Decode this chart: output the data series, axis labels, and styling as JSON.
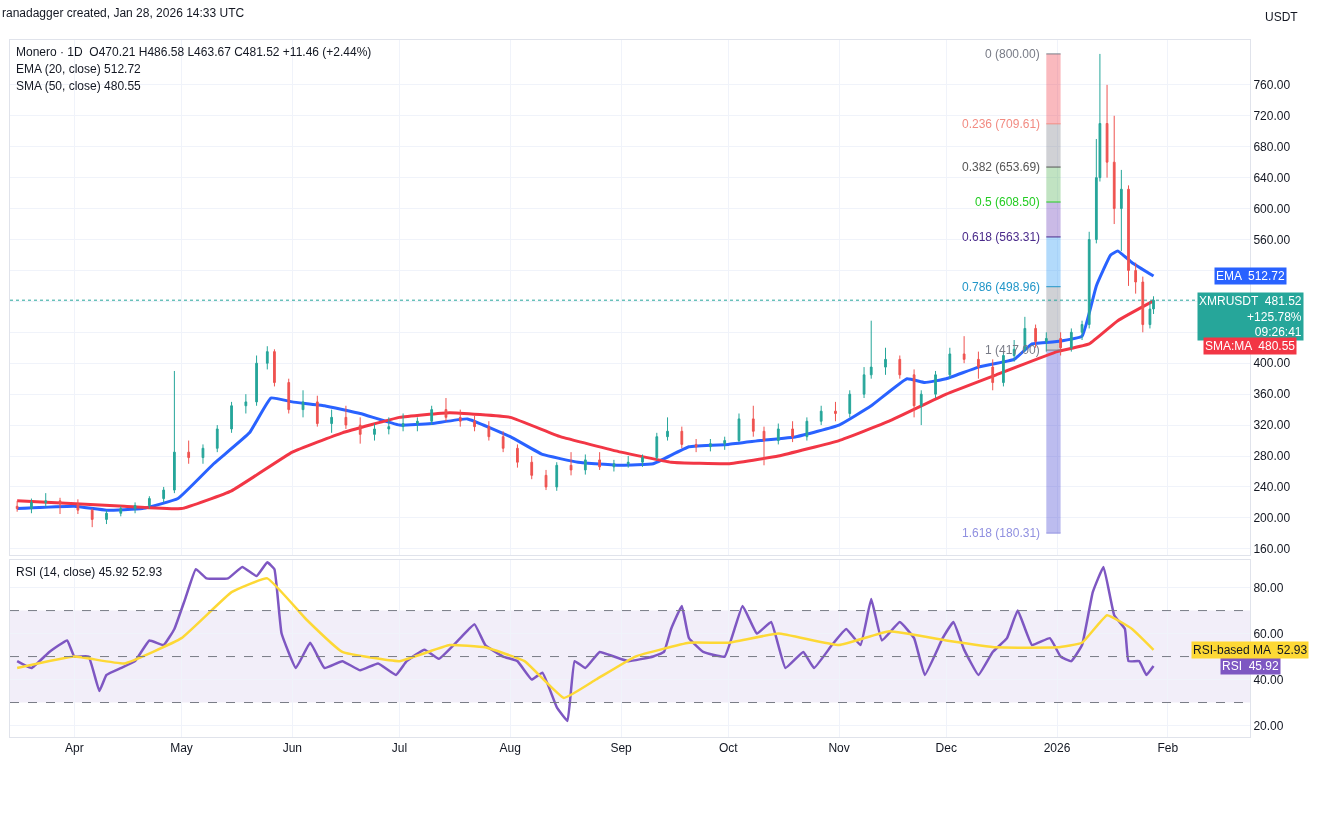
{
  "chart_data": [
    {
      "type": "candlestick",
      "title": "Monero · 1D  O470.21 H486.58 L463.67 C481.52 +11.46 (+2.44%)",
      "subtitle": "ranadagger created, Jan 28, 2026 14:33 UTC",
      "ylabel": "USDT",
      "x": [
        "2025-03-16",
        "2025-03-20",
        "2025-03-24",
        "2025-03-28",
        "2025-04-02",
        "2025-04-06",
        "2025-04-10",
        "2025-04-14",
        "2025-04-18",
        "2025-04-22",
        "2025-04-26",
        "2025-04-29",
        "2025-05-03",
        "2025-05-07",
        "2025-05-11",
        "2025-05-15",
        "2025-05-19",
        "2025-05-22",
        "2025-05-25",
        "2025-05-27",
        "2025-05-31",
        "2025-06-04",
        "2025-06-08",
        "2025-06-12",
        "2025-06-16",
        "2025-06-20",
        "2025-06-24",
        "2025-06-28",
        "2025-07-02",
        "2025-07-06",
        "2025-07-10",
        "2025-07-14",
        "2025-07-18",
        "2025-07-22",
        "2025-07-26",
        "2025-07-30",
        "2025-08-03",
        "2025-08-07",
        "2025-08-11",
        "2025-08-14",
        "2025-08-18",
        "2025-08-22",
        "2025-08-26",
        "2025-08-30",
        "2025-09-03",
        "2025-09-07",
        "2025-09-11",
        "2025-09-14",
        "2025-09-18",
        "2025-09-22",
        "2025-09-26",
        "2025-09-30",
        "2025-10-04",
        "2025-10-08",
        "2025-10-11",
        "2025-10-15",
        "2025-10-19",
        "2025-10-23",
        "2025-10-27",
        "2025-10-31",
        "2025-11-04",
        "2025-11-08",
        "2025-11-10",
        "2025-11-14",
        "2025-11-18",
        "2025-11-22",
        "2025-11-24",
        "2025-11-28",
        "2025-12-02",
        "2025-12-06",
        "2025-12-10",
        "2025-12-14",
        "2025-12-17",
        "2025-12-20",
        "2025-12-23",
        "2025-12-26",
        "2025-12-29",
        "2026-01-02",
        "2026-01-05",
        "2026-01-08",
        "2026-01-10",
        "2026-01-12",
        "2026-01-13",
        "2026-01-15",
        "2026-01-17",
        "2026-01-19",
        "2026-01-21",
        "2026-01-23",
        "2026-01-25",
        "2026-01-27",
        "2026-01-28"
      ],
      "ohlc": [
        [
          215,
          222,
          208,
          212
        ],
        [
          212,
          225,
          206,
          220
        ],
        [
          220,
          232,
          214,
          222
        ],
        [
          222,
          226,
          205,
          218
        ],
        [
          218,
          224,
          205,
          210
        ],
        [
          210,
          212,
          188,
          198
        ],
        [
          198,
          210,
          192,
          206
        ],
        [
          206,
          215,
          202,
          212
        ],
        [
          212,
          220,
          206,
          216
        ],
        [
          216,
          228,
          212,
          225
        ],
        [
          225,
          240,
          220,
          236
        ],
        [
          236,
          390,
          232,
          285
        ],
        [
          285,
          300,
          270,
          278
        ],
        [
          278,
          295,
          270,
          290
        ],
        [
          290,
          320,
          285,
          315
        ],
        [
          315,
          350,
          310,
          345
        ],
        [
          345,
          360,
          335,
          350
        ],
        [
          350,
          410,
          345,
          400
        ],
        [
          400,
          422,
          392,
          415
        ],
        [
          415,
          418,
          370,
          375
        ],
        [
          375,
          380,
          335,
          340
        ],
        [
          340,
          365,
          330,
          350
        ],
        [
          350,
          358,
          318,
          322
        ],
        [
          322,
          340,
          310,
          330
        ],
        [
          330,
          345,
          315,
          320
        ],
        [
          320,
          330,
          296,
          308
        ],
        [
          308,
          322,
          300,
          315
        ],
        [
          315,
          330,
          308,
          318
        ],
        [
          318,
          335,
          312,
          322
        ],
        [
          322,
          330,
          312,
          325
        ],
        [
          325,
          345,
          320,
          340
        ],
        [
          340,
          355,
          325,
          330
        ],
        [
          330,
          340,
          318,
          325
        ],
        [
          325,
          332,
          312,
          318
        ],
        [
          318,
          325,
          300,
          305
        ],
        [
          305,
          312,
          285,
          290
        ],
        [
          290,
          295,
          265,
          272
        ],
        [
          272,
          280,
          250,
          255
        ],
        [
          255,
          262,
          236,
          240
        ],
        [
          240,
          272,
          235,
          268
        ],
        [
          268,
          285,
          255,
          262
        ],
        [
          262,
          282,
          256,
          275
        ],
        [
          275,
          285,
          262,
          266
        ],
        [
          266,
          275,
          260,
          270
        ],
        [
          270,
          280,
          265,
          272
        ],
        [
          272,
          282,
          266,
          278
        ],
        [
          278,
          310,
          275,
          305
        ],
        [
          305,
          330,
          300,
          312
        ],
        [
          312,
          318,
          290,
          295
        ],
        [
          295,
          302,
          285,
          292
        ],
        [
          292,
          302,
          286,
          296
        ],
        [
          296,
          305,
          288,
          300
        ],
        [
          300,
          335,
          298,
          328
        ],
        [
          328,
          345,
          305,
          312
        ],
        [
          312,
          318,
          268,
          300
        ],
        [
          300,
          322,
          295,
          315
        ],
        [
          315,
          325,
          298,
          305
        ],
        [
          305,
          330,
          300,
          325
        ],
        [
          325,
          345,
          320,
          338
        ],
        [
          338,
          350,
          325,
          335
        ],
        [
          335,
          365,
          330,
          360
        ],
        [
          360,
          395,
          355,
          385
        ],
        [
          385,
          455,
          380,
          395
        ],
        [
          395,
          420,
          385,
          405
        ],
        [
          405,
          410,
          380,
          385
        ],
        [
          385,
          392,
          330,
          345
        ],
        [
          345,
          365,
          320,
          360
        ],
        [
          360,
          390,
          355,
          385
        ],
        [
          385,
          420,
          380,
          412
        ],
        [
          412,
          435,
          400,
          405
        ],
        [
          405,
          415,
          380,
          395
        ],
        [
          395,
          405,
          365,
          375
        ],
        [
          375,
          415,
          370,
          410
        ],
        [
          410,
          430,
          402,
          418
        ],
        [
          418,
          460,
          415,
          445
        ],
        [
          445,
          450,
          420,
          428
        ],
        [
          428,
          440,
          415,
          432
        ],
        [
          432,
          440,
          410,
          420
        ],
        [
          420,
          445,
          415,
          440
        ],
        [
          440,
          455,
          430,
          450
        ],
        [
          450,
          570,
          445,
          560
        ],
        [
          560,
          690,
          555,
          640
        ],
        [
          640,
          800,
          635,
          710
        ],
        [
          710,
          760,
          640,
          660
        ],
        [
          660,
          720,
          580,
          600
        ],
        [
          600,
          650,
          545,
          625
        ],
        [
          625,
          630,
          500,
          520
        ],
        [
          520,
          530,
          490,
          505
        ],
        [
          505,
          512,
          440,
          450
        ],
        [
          450,
          480,
          445,
          470
        ],
        [
          470.21,
          486.58,
          463.67,
          481.52
        ]
      ],
      "series": [
        {
          "type": "bar",
          "x": [
            "2025-12-31"
          ],
          "base": [
            709.61
          ],
          "values": [
            90.39
          ],
          "color": "#f23645"
        },
        {
          "type": "bar",
          "x": [
            "2025-12-31"
          ],
          "base": [
            653.69
          ],
          "values": [
            55.92
          ],
          "color": "#787b86"
        },
        {
          "type": "bar",
          "x": [
            "2025-12-31"
          ],
          "base": [
            608.5
          ],
          "values": [
            45.19
          ],
          "color": "#4caf50"
        },
        {
          "type": "bar",
          "x": [
            "2025-12-31"
          ],
          "base": [
            563.31
          ],
          "values": [
            45.19
          ],
          "color": "#673ab7"
        },
        {
          "type": "bar",
          "x": [
            "2025-12-31"
          ],
          "base": [
            498.96
          ],
          "values": [
            64.35
          ],
          "color": "#2196f3"
        },
        {
          "type": "bar",
          "x": [
            "2025-12-31"
          ],
          "base": [
            417
          ],
          "values": [
            81.96
          ],
          "color": "#787b86"
        },
        {
          "type": "bar",
          "x": [
            "2025-12-31"
          ],
          "base": [
            180.31
          ],
          "values": [
            236.69
          ],
          "color": "#3f3fd0"
        },
        {
          "type": "line",
          "name": "EMA  512.72",
          "color": "#2962ff",
          "x": [
            "2025-03-16",
            "2025-04-01",
            "2025-04-10",
            "2025-04-20",
            "2025-04-30",
            "2025-05-10",
            "2025-05-20",
            "2025-05-26",
            "2025-06-01",
            "2025-06-10",
            "2025-06-20",
            "2025-07-01",
            "2025-07-10",
            "2025-07-20",
            "2025-08-01",
            "2025-08-10",
            "2025-08-20",
            "2025-09-01",
            "2025-09-10",
            "2025-09-20",
            "2025-10-01",
            "2025-10-10",
            "2025-10-20",
            "2025-11-01",
            "2025-11-10",
            "2025-11-20",
            "2025-11-25",
            "2025-12-01",
            "2025-12-10",
            "2025-12-20",
            "2025-12-25",
            "2026-01-01",
            "2026-01-08",
            "2026-01-12",
            "2026-01-16",
            "2026-01-18",
            "2026-01-22",
            "2026-01-28"
          ],
          "values": [
            212,
            215,
            210,
            212,
            225,
            270,
            310,
            355,
            350,
            345,
            335,
            320,
            322,
            328,
            305,
            282,
            272,
            268,
            270,
            292,
            295,
            300,
            305,
            320,
            345,
            380,
            375,
            380,
            395,
            405,
            425,
            428,
            435,
            500,
            540,
            545,
            530,
            512.72
          ]
        },
        {
          "type": "line",
          "name": "SMA:MA  480.55",
          "color": "#f23645",
          "x": [
            "2025-03-16",
            "2025-04-15",
            "2025-05-01",
            "2025-05-15",
            "2025-06-01",
            "2025-06-15",
            "2025-07-01",
            "2025-07-15",
            "2025-08-01",
            "2025-08-15",
            "2025-09-01",
            "2025-09-15",
            "2025-10-01",
            "2025-10-15",
            "2025-11-01",
            "2025-11-15",
            "2025-12-01",
            "2025-12-15",
            "2026-01-01",
            "2026-01-10",
            "2026-01-18",
            "2026-01-28"
          ],
          "values": [
            222,
            215,
            212,
            235,
            285,
            310,
            330,
            336,
            330,
            305,
            285,
            272,
            270,
            280,
            300,
            325,
            360,
            385,
            415,
            425,
            455,
            480.55
          ]
        }
      ],
      "xlim": [
        "2025-03-14",
        "2026-02-24"
      ],
      "ylim": [
        152,
        818
      ],
      "yticks": [
        {
          "value": 160,
          "label": "160.00"
        },
        {
          "value": 200,
          "label": "200.00"
        },
        {
          "value": 240,
          "label": "240.00"
        },
        {
          "value": 280,
          "label": "280.00"
        },
        {
          "value": 320,
          "label": "320.00"
        },
        {
          "value": 360,
          "label": "360.00"
        },
        {
          "value": 400,
          "label": "400.00"
        },
        {
          "value": 440,
          "label": null
        },
        {
          "value": 480,
          "label": null
        },
        {
          "value": 520,
          "label": null
        },
        {
          "value": 560,
          "label": "560.00"
        },
        {
          "value": 600,
          "label": "600.00"
        },
        {
          "value": 640,
          "label": "640.00"
        },
        {
          "value": 680,
          "label": "680.00"
        },
        {
          "value": 720,
          "label": "720.00"
        },
        {
          "value": 760,
          "label": "760.00"
        }
      ],
      "tick_labels": "y",
      "grid": true,
      "ref_lines": [
        {
          "axis": "y",
          "value": 800,
          "label": "0 (800.00)",
          "color": "#787b86"
        },
        {
          "axis": "y",
          "value": 709.61,
          "label": "0.236 (709.61)",
          "color": "#f28b82"
        },
        {
          "axis": "y",
          "value": 653.69,
          "label": "0.382 (653.69)",
          "color": "#555555"
        },
        {
          "axis": "y",
          "value": 608.5,
          "label": "0.5 (608.50)",
          "color": "#22cc22"
        },
        {
          "axis": "y",
          "value": 563.31,
          "label": "0.618 (563.31)",
          "color": "#4a2a8a"
        },
        {
          "axis": "y",
          "value": 498.96,
          "label": "0.786 (498.96)",
          "color": "#2196c8"
        },
        {
          "axis": "y",
          "value": 417,
          "label": "1 (417.00)",
          "color": "#787b86"
        },
        {
          "axis": "y",
          "value": 180.31,
          "label": "1.618 (180.31)",
          "color": "#9090e0"
        },
        {
          "axis": "y",
          "value": 481.52,
          "label": "XMRUSDT  481.52\n+125.78%\n09:26:41",
          "color": "#26a69a",
          "line_style": "dotted"
        }
      ],
      "annotations": [
        "EMA (20, close) 512.72",
        "SMA (50, close) 480.55"
      ]
    },
    {
      "type": "line",
      "annotations": [
        "RSI (14, close) 45.92 52.93"
      ],
      "series": [
        {
          "name": "RSI  45.92",
          "color": "#7e57c2",
          "x": [
            "2025-03-16",
            "2025-03-20",
            "2025-03-25",
            "2025-03-30",
            "2025-04-01",
            "2025-04-05",
            "2025-04-08",
            "2025-04-10",
            "2025-04-14",
            "2025-04-18",
            "2025-04-22",
            "2025-04-26",
            "2025-04-29",
            "2025-05-02",
            "2025-05-05",
            "2025-05-08",
            "2025-05-14",
            "2025-05-18",
            "2025-05-22",
            "2025-05-25",
            "2025-05-27",
            "2025-05-29",
            "2025-06-02",
            "2025-06-06",
            "2025-06-10",
            "2025-06-15",
            "2025-06-20",
            "2025-06-25",
            "2025-06-30",
            "2025-07-03",
            "2025-07-08",
            "2025-07-12",
            "2025-07-18",
            "2025-07-22",
            "2025-07-25",
            "2025-07-30",
            "2025-08-03",
            "2025-08-07",
            "2025-08-10",
            "2025-08-14",
            "2025-08-17",
            "2025-08-19",
            "2025-08-22",
            "2025-08-26",
            "2025-08-30",
            "2025-09-03",
            "2025-09-10",
            "2025-09-13",
            "2025-09-15",
            "2025-09-18",
            "2025-09-20",
            "2025-09-24",
            "2025-09-30",
            "2025-10-05",
            "2025-10-09",
            "2025-10-13",
            "2025-10-17",
            "2025-10-22",
            "2025-10-25",
            "2025-10-30",
            "2025-11-03",
            "2025-11-07",
            "2025-11-10",
            "2025-11-13",
            "2025-11-18",
            "2025-11-22",
            "2025-11-25",
            "2025-11-30",
            "2025-12-03",
            "2025-12-06",
            "2025-12-10",
            "2025-12-14",
            "2025-12-18",
            "2025-12-21",
            "2025-12-25",
            "2025-12-30",
            "2026-01-02",
            "2026-01-05",
            "2026-01-08",
            "2026-01-11",
            "2026-01-14",
            "2026-01-17",
            "2026-01-20",
            "2026-01-21",
            "2026-01-24",
            "2026-01-26",
            "2026-01-28"
          ],
          "values": [
            48,
            45,
            52,
            57,
            50,
            50,
            35,
            42,
            45,
            48,
            57,
            55,
            62,
            75,
            88,
            84,
            84,
            89,
            85,
            91,
            88,
            60,
            45,
            56,
            45,
            48,
            44,
            47,
            42,
            48,
            53,
            49,
            58,
            64,
            55,
            50,
            48,
            40,
            43,
            28,
            22,
            48,
            45,
            52,
            50,
            48,
            50,
            52,
            62,
            72,
            58,
            52,
            50,
            72,
            60,
            65,
            45,
            52,
            45,
            55,
            62,
            55,
            75,
            57,
            65,
            58,
            42,
            58,
            65,
            53,
            42,
            52,
            58,
            70,
            55,
            58,
            50,
            48,
            55,
            78,
            89,
            68,
            62,
            48,
            48,
            42,
            45.92
          ]
        },
        {
          "name": "RSI-based MA  52.93",
          "color": "#fdd835",
          "x": [
            "2025-03-16",
            "2025-04-01",
            "2025-04-15",
            "2025-05-01",
            "2025-05-15",
            "2025-05-25",
            "2025-06-05",
            "2025-06-15",
            "2025-07-01",
            "2025-07-15",
            "2025-07-25",
            "2025-08-05",
            "2025-08-16",
            "2025-08-25",
            "2025-09-05",
            "2025-09-20",
            "2025-10-01",
            "2025-10-15",
            "2025-11-01",
            "2025-11-15",
            "2025-12-01",
            "2025-12-15",
            "2026-01-01",
            "2026-01-08",
            "2026-01-15",
            "2026-01-22",
            "2026-01-28"
          ],
          "values": [
            45,
            50,
            47,
            58,
            78,
            84,
            66,
            52,
            48,
            55,
            54,
            48,
            32,
            40,
            50,
            56,
            56,
            60,
            55,
            61,
            57,
            54,
            54,
            56,
            68,
            62,
            52.93
          ]
        }
      ],
      "xlim": [
        "2025-03-14",
        "2026-02-24"
      ],
      "ylim": [
        15,
        92
      ],
      "yticks": [
        {
          "value": 20,
          "label": "20.00"
        },
        {
          "value": 40,
          "label": "40.00"
        },
        {
          "value": 60,
          "label": "60.00"
        },
        {
          "value": 80,
          "label": "80.00"
        }
      ],
      "xticks": [
        {
          "value": "2025-04-01",
          "label": "Apr"
        },
        {
          "value": "2025-05-01",
          "label": "May"
        },
        {
          "value": "2025-06-01",
          "label": "Jun"
        },
        {
          "value": "2025-07-01",
          "label": "Jul"
        },
        {
          "value": "2025-08-01",
          "label": "Aug"
        },
        {
          "value": "2025-09-01",
          "label": "Sep"
        },
        {
          "value": "2025-10-01",
          "label": "Oct"
        },
        {
          "value": "2025-11-01",
          "label": "Nov"
        },
        {
          "value": "2025-12-01",
          "label": "Dec"
        },
        {
          "value": "2026-01-01",
          "label": "2026"
        },
        {
          "value": "2026-02-01",
          "label": "Feb"
        }
      ],
      "grid": true,
      "ref_lines": [
        {
          "axis": "y",
          "value": 70,
          "color": "#787b86",
          "line_style": "dashed"
        },
        {
          "axis": "y",
          "value": 50,
          "color": "#787b86",
          "line_style": "dashed"
        },
        {
          "axis": "y",
          "value": 30,
          "color": "#787b86",
          "line_style": "dashed"
        }
      ],
      "bands": [
        {
          "axis": "y",
          "from": 30,
          "to": 70,
          "color": "#7e57c2"
        }
      ]
    }
  ]
}
